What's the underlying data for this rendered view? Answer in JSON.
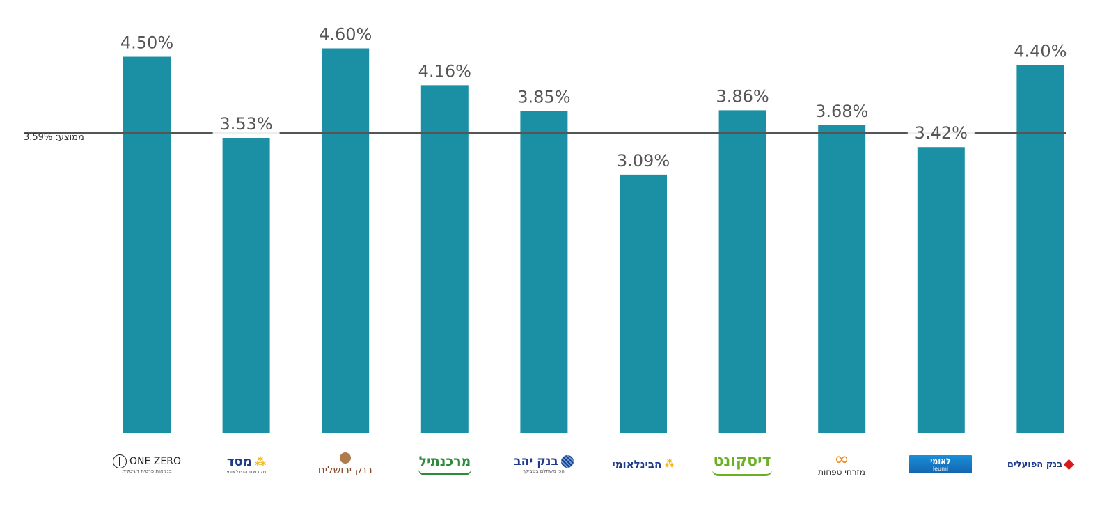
{
  "chart_data": {
    "type": "bar",
    "categories": [
      "ONE ZERO",
      "מסד",
      "בנק ירושלים",
      "מרכנתיל",
      "בנק יהב",
      "הבינלאומי",
      "דיסקונט",
      "מזרחי טפחות",
      "לאומי",
      "בנק הפועלים"
    ],
    "values": [
      4.5,
      3.53,
      4.6,
      4.16,
      3.85,
      3.09,
      3.86,
      3.68,
      3.42,
      4.4
    ],
    "value_labels": [
      "4.50%",
      "3.53%",
      "4.60%",
      "4.16%",
      "3.85%",
      "3.09%",
      "3.86%",
      "3.68%",
      "3.42%",
      "4.40%"
    ],
    "average": 3.59,
    "average_label": "ממוצע: 3.59%",
    "ylim": [
      0,
      4.75
    ],
    "grid": false,
    "title": "",
    "xlabel": "",
    "ylabel": ""
  },
  "logos": [
    {
      "name": "ONE ZERO",
      "sub": "בנקאות פרטית דיגיטלית",
      "color": "#222222"
    },
    {
      "name": "מסד",
      "sub": "מקבוצת הבינלאומי",
      "color": "#1e3a8a"
    },
    {
      "name": "בנק ירושלים",
      "sub": "",
      "color": "#8b4a2b"
    },
    {
      "name": "מרכנתיל",
      "sub": "",
      "color": "#2e8b3a"
    },
    {
      "name": "בנק יהב",
      "sub": "הכי משתלם בשבילך",
      "color": "#1e3a8a"
    },
    {
      "name": "הבינלאומי",
      "sub": "",
      "color": "#1e3a8a"
    },
    {
      "name": "דיסקונט",
      "sub": "",
      "color": "#6ab023"
    },
    {
      "name": "מזרחי טפחות",
      "sub": "",
      "color": "#333333"
    },
    {
      "name": "לאומי",
      "sub": "leumi",
      "color": "#ffffff"
    },
    {
      "name": "בנק הפועלים",
      "sub": "",
      "color": "#1e3a8a"
    }
  ],
  "colors": {
    "bar": "#1b8fa3",
    "average_line": "#555555",
    "label": "#555555"
  }
}
